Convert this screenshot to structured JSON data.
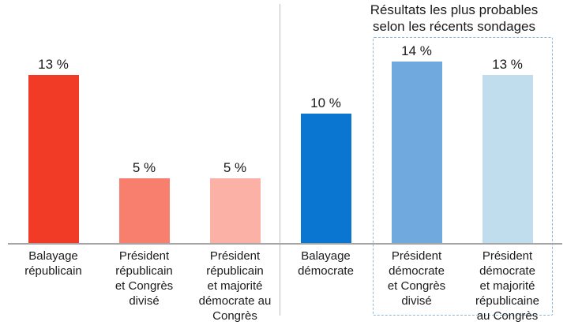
{
  "chart_data": {
    "type": "bar",
    "title": "Résultats les plus probables selon les récents sondages",
    "title_lines": [
      "Résultats les plus probables",
      "selon les récents sondages"
    ],
    "unit": "%",
    "ylim": [
      0,
      15
    ],
    "grid": false,
    "legend": false,
    "categories": [
      "Balayage républicain",
      "Président républicain et Congrès divisé",
      "Président républicain et majorité démocrate au Congrès",
      "Balayage démocrate",
      "Président démocrate et Congrès divisé",
      "Président démocrate et majorité républicaine au Congrès"
    ],
    "category_display": [
      "Balayage\nrépublicain",
      "Président\nrépublicain\net Congrès\ndivisé",
      "Président\nrépublicain\net majorité\ndémocrate au\nCongrès",
      "Balayage\ndémocrate",
      "Président\ndémocrate\net Congrès\ndivisé",
      "Président\ndémocrate\net majorité\nrépublicaine\nau Congrès"
    ],
    "values": [
      13,
      5,
      5,
      10,
      14,
      13
    ],
    "value_labels": [
      "13 %",
      "5 %",
      "5 %",
      "10 %",
      "14 %",
      "13 %"
    ],
    "bar_colors": [
      "#f23b27",
      "#f87f6e",
      "#fbb1a5",
      "#0b76d1",
      "#6fa9de",
      "#c0ddee"
    ],
    "annotation": {
      "text": "Résultats les plus probables selon les récents sondages",
      "style": "dashed-box",
      "box_color": "#8fb8d8",
      "applies_to_indices": [
        4,
        5
      ]
    },
    "colors": {
      "axis_line": "#a6a6a6",
      "divider_line": "#bfbfbf",
      "text": "#1a1a1a"
    }
  }
}
